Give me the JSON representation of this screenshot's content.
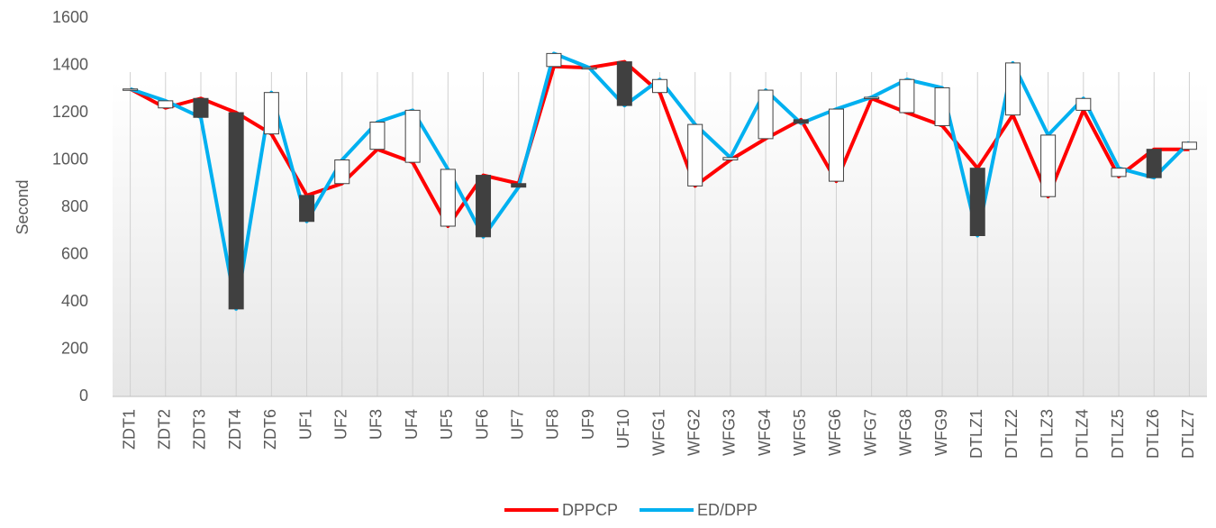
{
  "chart_data": {
    "type": "line",
    "y_label": "Second",
    "categories": [
      "ZDT1",
      "ZDT2",
      "ZDT3",
      "ZDT4",
      "ZDT6",
      "UF1",
      "UF2",
      "UF3",
      "UF4",
      "UF5",
      "UF6",
      "UF7",
      "UF8",
      "UF9",
      "UF10",
      "WFG1",
      "WFG2",
      "WFG3",
      "WFG4",
      "WFG5",
      "WFG6",
      "WFG7",
      "WFG8",
      "WFG9",
      "DTLZ1",
      "DTLZ2",
      "DTLZ3",
      "DTLZ4",
      "DTLZ5",
      "DTLZ6",
      "DTLZ7"
    ],
    "series": [
      {
        "name": "DPPCP",
        "color": "#ff0000",
        "values": [
          1300,
          1220,
          1260,
          1200,
          1110,
          850,
          900,
          1045,
          990,
          720,
          935,
          900,
          1395,
          1390,
          1415,
          1285,
          890,
          1000,
          1090,
          1170,
          910,
          1260,
          1200,
          1145,
          965,
          1190,
          845,
          1210,
          930,
          1045,
          1045
        ]
      },
      {
        "name": "ED/DPP",
        "color": "#00b0f0",
        "values": [
          1300,
          1250,
          1180,
          370,
          1285,
          740,
          1000,
          1160,
          1210,
          960,
          675,
          885,
          1450,
          1390,
          1230,
          1340,
          1150,
          1010,
          1295,
          1155,
          1215,
          1265,
          1340,
          1305,
          680,
          1410,
          1105,
          1260,
          965,
          925,
          1075
        ]
      }
    ],
    "up_down_bars": true,
    "up_bar_color": "#ffffff",
    "down_bar_color": "#404040",
    "ylim": [
      0,
      1600
    ],
    "yticks": [
      0,
      200,
      400,
      600,
      800,
      1000,
      1200,
      1400,
      1600
    ],
    "grid": "x",
    "legend": "bottom"
  }
}
